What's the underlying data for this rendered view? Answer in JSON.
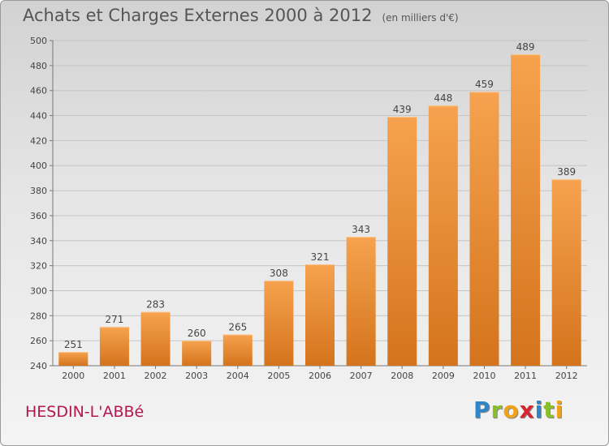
{
  "title": "Achats et Charges Externes 2000 à 2012",
  "subtitle": "(en milliers d'€)",
  "commune": "HESDIN-L'ABBé",
  "logo": {
    "letters": [
      "P",
      "r",
      "o",
      "x",
      "i",
      "t",
      "i"
    ],
    "colors": [
      "#2e86c8",
      "#8bbf2a",
      "#f0a21a",
      "#d8262e",
      "#2e86c8",
      "#8bbf2a",
      "#f0a21a"
    ]
  },
  "colors": {
    "bar_top": "#f6a24e",
    "bar_bottom": "#d4741c",
    "commune": "#b5164f"
  },
  "chart_data": {
    "type": "bar",
    "categories": [
      "2000",
      "2001",
      "2002",
      "2003",
      "2004",
      "2005",
      "2006",
      "2007",
      "2008",
      "2009",
      "2010",
      "2011",
      "2012"
    ],
    "values": [
      251,
      271,
      283,
      260,
      265,
      308,
      321,
      343,
      439,
      448,
      459,
      489,
      389
    ],
    "ylim": [
      240,
      500
    ],
    "yticks": [
      240,
      260,
      280,
      300,
      320,
      340,
      360,
      380,
      400,
      420,
      440,
      460,
      480,
      500
    ],
    "grid": true,
    "data_labels": true
  }
}
